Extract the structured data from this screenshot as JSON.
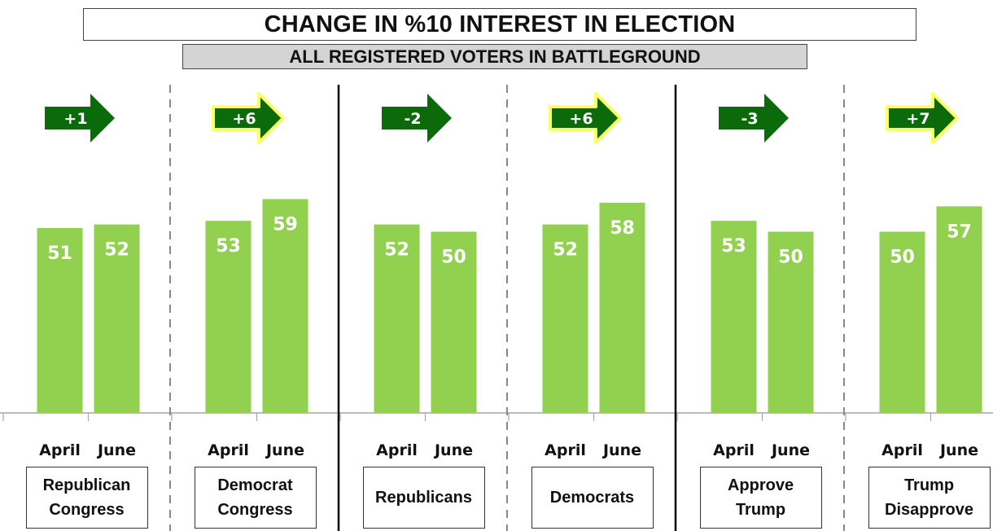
{
  "title": "CHANGE IN %10 INTEREST IN ELECTION",
  "subtitle": "ALL REGISTERED VOTERS IN BATTLEGROUND",
  "colors": {
    "bar": "#92d050",
    "arrow_fill": "#0b6b0b",
    "arrow_glow": "#ffff66",
    "value_label": "#ffffff",
    "divider_dashed": "#888888",
    "divider_solid": "#000000"
  },
  "chart_data": {
    "type": "bar",
    "series_labels": [
      "April",
      "June"
    ],
    "groups": [
      {
        "category": "Republican\nCongress",
        "values": [
          51,
          52
        ],
        "change": "+1",
        "highlight": false
      },
      {
        "category": "Democrat\nCongress",
        "values": [
          53,
          59
        ],
        "change": "+6",
        "highlight": true
      },
      {
        "category": "Republicans",
        "values": [
          52,
          50
        ],
        "change": "-2",
        "highlight": false
      },
      {
        "category": "Democrats",
        "values": [
          52,
          58
        ],
        "change": "+6",
        "highlight": true
      },
      {
        "category": "Approve\nTrump",
        "values": [
          53,
          50
        ],
        "change": "-3",
        "highlight": false
      },
      {
        "category": "Trump\nDisapprove",
        "values": [
          50,
          57
        ],
        "change": "+7",
        "highlight": true
      }
    ],
    "separators": [
      "dashed",
      "solid",
      "dashed",
      "solid",
      "dashed"
    ],
    "ylim": [
      0,
      100
    ],
    "grid": false,
    "legend": "none"
  }
}
